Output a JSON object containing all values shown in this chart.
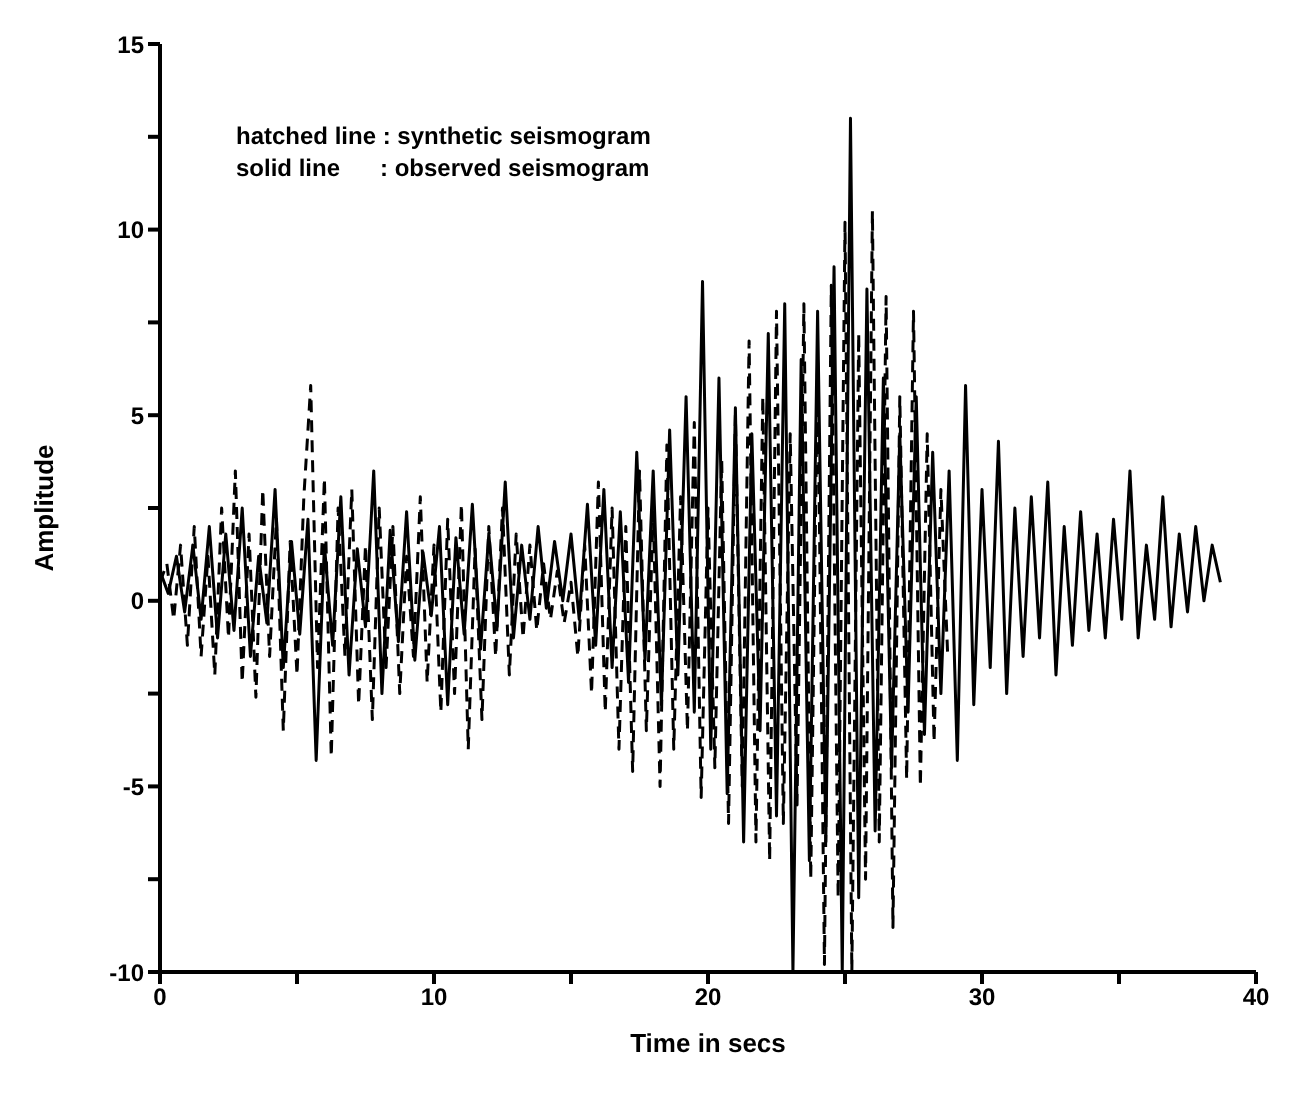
{
  "chart_data": {
    "type": "line",
    "xlabel": "Time in secs",
    "ylabel": "Amplitude",
    "annotations": [
      "hatched line : synthetic seismogram",
      "solid line      : observed seismogram"
    ],
    "xlim": [
      0,
      40
    ],
    "ylim": [
      -10,
      15
    ],
    "xticks": [
      0,
      {
        "value": 5,
        "label": null
      },
      10,
      {
        "value": 15,
        "label": null
      },
      20,
      {
        "value": 25,
        "label": null
      },
      30,
      {
        "value": 35,
        "label": null
      },
      40
    ],
    "yticks": [
      -10,
      {
        "value": -7.5,
        "label": null
      },
      -5,
      {
        "value": -2.5,
        "label": null
      },
      0,
      {
        "value": 2.5,
        "label": null
      },
      5,
      {
        "value": 7.5,
        "label": null
      },
      10,
      {
        "value": 12.5,
        "label": null
      },
      15
    ],
    "grid": false,
    "marker": "none",
    "series": [
      {
        "color": "#000000",
        "line_style": "solid",
        "x": [
          0,
          0.3,
          0.6,
          0.9,
          1.2,
          1.5,
          1.8,
          2.1,
          2.4,
          2.7,
          3,
          3.3,
          3.6,
          3.9,
          4.2,
          4.5,
          4.8,
          5.1,
          5.4,
          5.7,
          6,
          6.3,
          6.6,
          6.9,
          7.2,
          7.5,
          7.8,
          8.1,
          8.4,
          8.7,
          9,
          9.3,
          9.6,
          9.9,
          10.2,
          10.5,
          10.8,
          11.1,
          11.4,
          11.7,
          12,
          12.3,
          12.6,
          12.9,
          13.2,
          13.5,
          13.8,
          14.1,
          14.4,
          14.7,
          15,
          15.3,
          15.6,
          15.9,
          16.2,
          16.5,
          16.8,
          17.1,
          17.4,
          17.7,
          18,
          18.3,
          18.6,
          18.9,
          19.2,
          19.5,
          19.8,
          20.1,
          20.4,
          20.7,
          21,
          21.3,
          21.6,
          21.9,
          22.2,
          22.5,
          22.8,
          23.1,
          23.4,
          23.7,
          24,
          24.3,
          24.6,
          24.9,
          25.2,
          25.5,
          25.8,
          26.1,
          26.4,
          26.7,
          27,
          27.3,
          27.6,
          27.9,
          28.2,
          28.5,
          28.8,
          29.1,
          29.4,
          29.7,
          30,
          30.3,
          30.6,
          30.9,
          31.2,
          31.5,
          31.8,
          32.1,
          32.4,
          32.7,
          33,
          33.3,
          33.6,
          33.9,
          34.2,
          34.5,
          34.8,
          35.1,
          35.4,
          35.7,
          36,
          36.3,
          36.6,
          36.9,
          37.2,
          37.5,
          37.8,
          38.1,
          38.4,
          38.7
        ],
        "values": [
          0.8,
          0.2,
          1.2,
          -0.3,
          1.5,
          -0.5,
          2.0,
          -1.0,
          1.8,
          -0.8,
          2.5,
          -1.5,
          1.2,
          -0.6,
          3.0,
          -1.8,
          1.6,
          -0.9,
          2.2,
          -4.3,
          1.5,
          -1.2,
          2.8,
          -2.0,
          1.4,
          -0.7,
          3.5,
          -2.5,
          1.9,
          -1.1,
          2.4,
          -1.6,
          1.3,
          -0.4,
          2.0,
          -2.8,
          1.7,
          -0.9,
          2.6,
          -1.3,
          1.8,
          -0.7,
          3.2,
          -1.0,
          1.5,
          -0.5,
          2.0,
          -0.2,
          1.6,
          0.0,
          1.8,
          -0.5,
          2.6,
          -1.2,
          3.0,
          -1.8,
          2.4,
          -2.2,
          4.0,
          -1.6,
          3.5,
          -2.8,
          4.6,
          -2.0,
          5.5,
          -3.0,
          8.6,
          -4.0,
          6.0,
          -5.2,
          5.2,
          -6.5,
          4.5,
          -3.5,
          7.2,
          -5.8,
          8.0,
          -10.0,
          6.5,
          -7.0,
          7.8,
          -6.5,
          9.0,
          -10.0,
          13.0,
          -8.0,
          8.4,
          -6.2,
          6.0,
          -4.5,
          4.5,
          -3.0,
          5.5,
          -3.6,
          4.0,
          -2.5,
          3.5,
          -4.3,
          5.8,
          -2.8,
          3.0,
          -1.8,
          4.3,
          -2.5,
          2.5,
          -1.5,
          2.8,
          -1.0,
          3.2,
          -2.0,
          2.0,
          -1.2,
          2.4,
          -0.8,
          1.8,
          -1.0,
          2.2,
          -0.5,
          3.5,
          -1.0,
          1.5,
          -0.5,
          2.8,
          -0.7,
          1.8,
          -0.3,
          2.0,
          0.0,
          1.5,
          0.5
        ]
      },
      {
        "color": "#000000",
        "line_style": "dashed",
        "x": [
          0,
          0.25,
          0.5,
          0.75,
          1,
          1.25,
          1.5,
          1.75,
          2,
          2.25,
          2.5,
          2.75,
          3,
          3.25,
          3.5,
          3.75,
          4,
          4.25,
          4.5,
          4.75,
          5,
          5.25,
          5.5,
          5.75,
          6,
          6.25,
          6.5,
          6.75,
          7,
          7.25,
          7.5,
          7.75,
          8,
          8.25,
          8.5,
          8.75,
          9,
          9.25,
          9.5,
          9.75,
          10,
          10.25,
          10.5,
          10.75,
          11,
          11.25,
          11.5,
          11.75,
          12,
          12.25,
          12.5,
          12.75,
          13,
          13.25,
          13.5,
          13.75,
          14,
          14.25,
          14.5,
          14.75,
          15,
          15.25,
          15.5,
          15.75,
          16,
          16.25,
          16.5,
          16.75,
          17,
          17.25,
          17.5,
          17.75,
          18,
          18.25,
          18.5,
          18.75,
          19,
          19.25,
          19.5,
          19.75,
          20,
          20.25,
          20.5,
          20.75,
          21,
          21.25,
          21.5,
          21.75,
          22,
          22.25,
          22.5,
          22.75,
          23,
          23.25,
          23.5,
          23.75,
          24,
          24.25,
          24.5,
          24.75,
          25,
          25.25,
          25.5,
          25.75,
          26,
          26.25,
          26.5,
          26.75,
          27,
          27.25,
          27.5,
          27.75,
          28,
          28.25,
          28.5,
          28.75
        ],
        "values": [
          0.5,
          1.0,
          -0.5,
          1.5,
          -1.2,
          2.0,
          -1.5,
          1.2,
          -2.0,
          2.5,
          -1.0,
          3.5,
          -2.2,
          1.8,
          -2.6,
          3.0,
          -1.5,
          2.2,
          -3.5,
          1.6,
          -2.0,
          2.8,
          5.8,
          -1.8,
          3.3,
          -4.2,
          2.5,
          -1.5,
          3.0,
          -2.8,
          1.5,
          -3.2,
          2.5,
          -1.8,
          2.0,
          -2.5,
          1.2,
          -1.5,
          2.8,
          -2.2,
          1.5,
          -3.0,
          2.2,
          -2.5,
          2.6,
          -4.0,
          1.4,
          -3.2,
          2.0,
          -1.5,
          2.5,
          -2.0,
          1.8,
          -1.0,
          1.5,
          -0.8,
          1.0,
          -0.5,
          0.8,
          -0.6,
          0.5,
          -1.5,
          1.5,
          -2.5,
          3.2,
          -3.0,
          2.5,
          -4.0,
          2.0,
          -4.6,
          3.5,
          -3.5,
          2.4,
          -5.0,
          4.2,
          -4.0,
          2.8,
          -3.5,
          4.8,
          -5.3,
          2.5,
          -4.5,
          3.8,
          -6.0,
          5.0,
          -5.0,
          7.0,
          -6.5,
          5.5,
          -7.0,
          7.8,
          -6.0,
          4.5,
          -5.5,
          8.0,
          -7.5,
          6.5,
          -9.8,
          8.5,
          -8.0,
          10.2,
          -10.0,
          7.2,
          -7.5,
          10.5,
          -6.5,
          8.2,
          -8.8,
          5.5,
          -4.8,
          7.8,
          -5.0,
          4.5,
          -3.8,
          3.0,
          -1.5
        ]
      }
    ]
  }
}
